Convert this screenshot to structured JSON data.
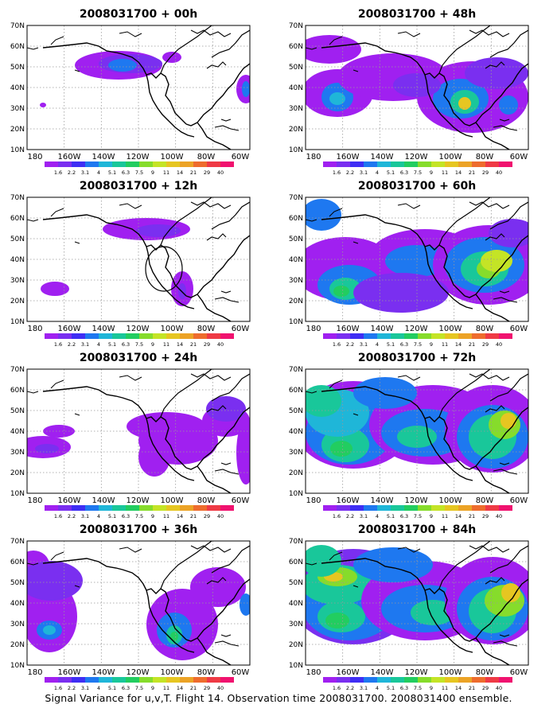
{
  "panels": [
    {
      "title": "2008031700 + 00h",
      "key": "p00"
    },
    {
      "title": "2008031700 + 12h",
      "key": "p12"
    },
    {
      "title": "2008031700 + 24h",
      "key": "p24"
    },
    {
      "title": "2008031700 + 36h",
      "key": "p36"
    },
    {
      "title": "2008031700 + 48h",
      "key": "p48"
    },
    {
      "title": "2008031700 + 60h",
      "key": "p60"
    },
    {
      "title": "2008031700 + 72h",
      "key": "p72"
    },
    {
      "title": "2008031700 + 84h",
      "key": "p84"
    }
  ],
  "lat_labels": [
    "70N",
    "60N",
    "50N",
    "40N",
    "30N",
    "20N",
    "10N"
  ],
  "lon_labels": [
    "180",
    "160W",
    "140W",
    "120W",
    "100W",
    "80W",
    "60W"
  ],
  "colorbar": {
    "colors": [
      "#a020f0",
      "#7a2ff0",
      "#3f2ef4",
      "#1e78f0",
      "#1fb6d8",
      "#19c79a",
      "#22cd60",
      "#86dc2b",
      "#c4e426",
      "#e6c621",
      "#eca326",
      "#ee6c2d",
      "#ef3a45",
      "#f0126f"
    ],
    "labels": [
      "1.6",
      "2.2",
      "3.1",
      "4",
      "5.1",
      "6.3",
      "7.5",
      "9",
      "11",
      "14",
      "21",
      "29",
      "40"
    ]
  },
  "caption": "Signal Variance for u,v,T. Flight 14. Observation time 2008031700. 2008031400 ensemble."
}
